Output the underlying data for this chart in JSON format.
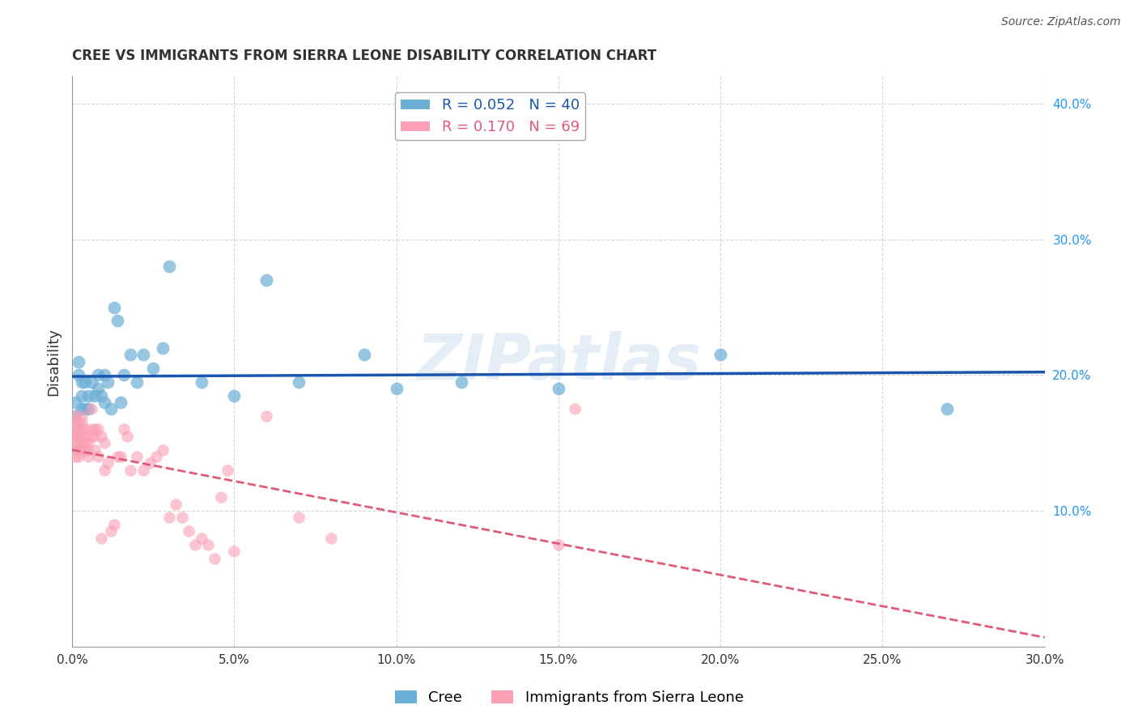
{
  "title": "CREE VS IMMIGRANTS FROM SIERRA LEONE DISABILITY CORRELATION CHART",
  "source": "Source: ZipAtlas.com",
  "ylabel": "Disability",
  "xlim": [
    0,
    0.3
  ],
  "ylim": [
    0,
    0.42
  ],
  "xticks": [
    0.0,
    0.05,
    0.1,
    0.15,
    0.2,
    0.25,
    0.3
  ],
  "yticks": [
    0.1,
    0.2,
    0.3,
    0.4
  ],
  "cree_color": "#6baed6",
  "sierra_color": "#fa9fb5",
  "cree_line_color": "#1a56b0",
  "sierra_line_color": "#e05a7a",
  "cree_R": 0.052,
  "cree_N": 40,
  "sierra_R": 0.17,
  "sierra_N": 69,
  "legend_label_cree": "Cree",
  "legend_label_sierra": "Immigrants from Sierra Leone",
  "watermark": "ZIPatlas",
  "cree_x": [
    0.001,
    0.001,
    0.002,
    0.002,
    0.003,
    0.003,
    0.003,
    0.004,
    0.004,
    0.005,
    0.005,
    0.006,
    0.007,
    0.008,
    0.008,
    0.009,
    0.01,
    0.01,
    0.011,
    0.012,
    0.013,
    0.014,
    0.015,
    0.016,
    0.018,
    0.02,
    0.022,
    0.025,
    0.028,
    0.03,
    0.04,
    0.05,
    0.06,
    0.07,
    0.09,
    0.1,
    0.12,
    0.15,
    0.2,
    0.27
  ],
  "cree_y": [
    0.17,
    0.18,
    0.2,
    0.21,
    0.175,
    0.185,
    0.195,
    0.175,
    0.195,
    0.185,
    0.175,
    0.195,
    0.185,
    0.19,
    0.2,
    0.185,
    0.2,
    0.18,
    0.195,
    0.175,
    0.25,
    0.24,
    0.18,
    0.2,
    0.215,
    0.195,
    0.215,
    0.205,
    0.22,
    0.28,
    0.195,
    0.185,
    0.27,
    0.195,
    0.215,
    0.19,
    0.195,
    0.19,
    0.215,
    0.175
  ],
  "sierra_x": [
    0.001,
    0.001,
    0.001,
    0.001,
    0.001,
    0.001,
    0.001,
    0.001,
    0.002,
    0.002,
    0.002,
    0.002,
    0.002,
    0.002,
    0.002,
    0.003,
    0.003,
    0.003,
    0.003,
    0.003,
    0.003,
    0.004,
    0.004,
    0.004,
    0.004,
    0.005,
    0.005,
    0.005,
    0.006,
    0.006,
    0.006,
    0.007,
    0.007,
    0.007,
    0.008,
    0.008,
    0.009,
    0.009,
    0.01,
    0.01,
    0.011,
    0.012,
    0.013,
    0.014,
    0.015,
    0.016,
    0.017,
    0.018,
    0.02,
    0.022,
    0.024,
    0.026,
    0.028,
    0.03,
    0.032,
    0.034,
    0.036,
    0.038,
    0.04,
    0.042,
    0.044,
    0.046,
    0.048,
    0.05,
    0.06,
    0.07,
    0.08,
    0.15,
    0.155
  ],
  "sierra_y": [
    0.155,
    0.16,
    0.165,
    0.17,
    0.145,
    0.15,
    0.16,
    0.14,
    0.155,
    0.145,
    0.15,
    0.14,
    0.16,
    0.165,
    0.155,
    0.145,
    0.155,
    0.15,
    0.16,
    0.165,
    0.17,
    0.15,
    0.155,
    0.16,
    0.145,
    0.145,
    0.15,
    0.14,
    0.16,
    0.175,
    0.155,
    0.155,
    0.145,
    0.16,
    0.16,
    0.14,
    0.155,
    0.08,
    0.13,
    0.15,
    0.135,
    0.085,
    0.09,
    0.14,
    0.14,
    0.16,
    0.155,
    0.13,
    0.14,
    0.13,
    0.135,
    0.14,
    0.145,
    0.095,
    0.105,
    0.095,
    0.085,
    0.075,
    0.08,
    0.075,
    0.065,
    0.11,
    0.13,
    0.07,
    0.17,
    0.095,
    0.08,
    0.075,
    0.175
  ]
}
